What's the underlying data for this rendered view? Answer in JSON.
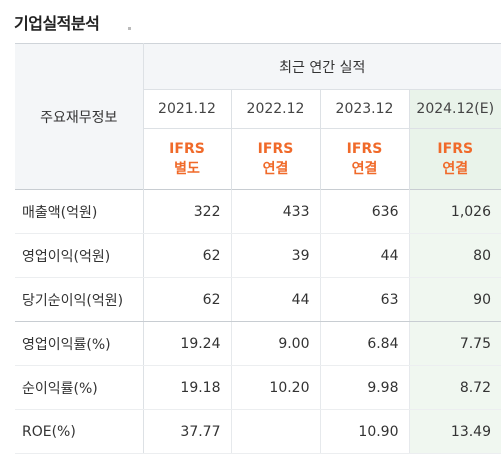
{
  "title": "기업실적분석",
  "header": {
    "label": "주요재무정보",
    "group": "최근 연간 실적",
    "years": [
      "2021.12",
      "2022.12",
      "2023.12",
      "2024.12(E)"
    ],
    "standards": [
      {
        "line1": "IFRS",
        "line2": "별도"
      },
      {
        "line1": "IFRS",
        "line2": "연결"
      },
      {
        "line1": "IFRS",
        "line2": "연결"
      },
      {
        "line1": "IFRS",
        "line2": "연결"
      }
    ]
  },
  "rows": [
    {
      "label": "매출액(억원)",
      "values": [
        "322",
        "433",
        "636",
        "1,026"
      ]
    },
    {
      "label": "영업이익(억원)",
      "values": [
        "62",
        "39",
        "44",
        "80"
      ]
    },
    {
      "label": "당기순이익(억원)",
      "values": [
        "62",
        "44",
        "63",
        "90"
      ]
    },
    {
      "label": "영업이익률(%)",
      "values": [
        "19.24",
        "9.00",
        "6.84",
        "7.75"
      ]
    },
    {
      "label": "순이익률(%)",
      "values": [
        "19.18",
        "10.20",
        "9.98",
        "8.72"
      ]
    },
    {
      "label": "ROE(%)",
      "values": [
        "37.77",
        "",
        "10.90",
        "13.49"
      ]
    }
  ]
}
